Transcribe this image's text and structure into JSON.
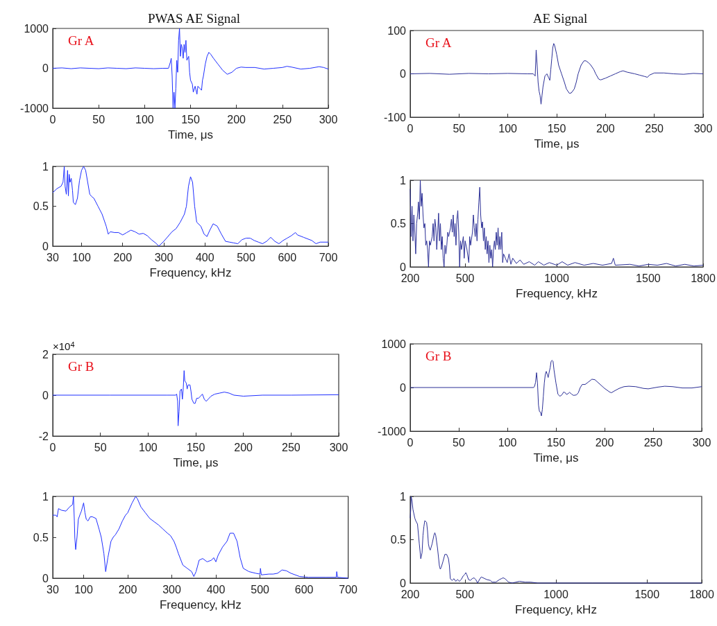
{
  "chart_data": [
    {
      "type": "line",
      "title": "PWAS AE Signal",
      "xlabel": "Time, μs",
      "annotations": [
        "Gr A"
      ],
      "xlim": [
        0,
        300
      ],
      "xticks": [
        0,
        50,
        100,
        150,
        200,
        250,
        300
      ],
      "ylim": [
        -1000,
        1000
      ],
      "yticks": [
        -1000,
        0,
        1000
      ],
      "grid": false,
      "marker": "none",
      "line_style": "solid",
      "series": [
        {
          "color": "#1f2fff",
          "x": [
            0,
            10,
            20,
            30,
            40,
            50,
            60,
            70,
            80,
            90,
            100,
            110,
            120,
            126,
            128,
            129,
            130,
            131,
            132,
            133,
            134,
            135,
            136,
            137,
            138,
            139,
            140,
            141,
            142,
            143,
            144,
            145,
            146,
            148,
            149,
            150,
            152,
            153,
            155,
            157,
            158,
            160,
            162,
            163,
            164,
            166,
            168,
            170,
            172,
            175,
            180,
            185,
            190,
            195,
            200,
            205,
            210,
            220,
            230,
            240,
            250,
            255,
            260,
            270,
            280,
            290,
            295,
            300
          ],
          "values": [
            0,
            10,
            -10,
            10,
            0,
            -10,
            10,
            0,
            -10,
            10,
            0,
            -10,
            0,
            0,
            150,
            250,
            -200,
            -1000,
            -600,
            -1000,
            -500,
            200,
            -100,
            700,
            1000,
            300,
            600,
            500,
            250,
            600,
            400,
            700,
            200,
            300,
            -100,
            -300,
            -400,
            -600,
            -450,
            -650,
            -450,
            -500,
            -550,
            -300,
            -200,
            100,
            300,
            400,
            350,
            250,
            100,
            -50,
            -150,
            -100,
            0,
            30,
            20,
            20,
            -20,
            0,
            20,
            50,
            30,
            -20,
            0,
            40,
            20,
            -20
          ]
        }
      ]
    },
    {
      "type": "line",
      "title": "AE Signal",
      "xlabel": "Time, μs",
      "annotations": [
        "Gr A"
      ],
      "xlim": [
        0,
        300
      ],
      "xticks": [
        0,
        50,
        100,
        150,
        200,
        250,
        300
      ],
      "ylim": [
        -100,
        100
      ],
      "yticks": [
        -100,
        0,
        100
      ],
      "grid": false,
      "marker": "none",
      "line_style": "solid",
      "series": [
        {
          "color": "#2b2f96",
          "x": [
            0,
            20,
            40,
            60,
            80,
            100,
            120,
            126,
            128,
            129,
            130,
            131,
            132,
            133,
            134,
            135,
            136,
            138,
            140,
            142,
            143,
            144,
            145,
            146,
            147,
            148,
            150,
            152,
            155,
            158,
            160,
            163,
            165,
            168,
            170,
            172,
            175,
            178,
            180,
            183,
            185,
            188,
            190,
            193,
            195,
            200,
            205,
            210,
            215,
            218,
            222,
            230,
            235,
            240,
            243,
            245,
            250,
            260,
            270,
            280,
            290,
            300
          ],
          "values": [
            0,
            1,
            -1,
            1,
            0,
            1,
            0,
            0,
            -5,
            55,
            20,
            -20,
            -40,
            -50,
            -70,
            -50,
            -30,
            -5,
            0,
            -10,
            -15,
            10,
            35,
            60,
            70,
            65,
            45,
            20,
            0,
            -20,
            -35,
            -45,
            -44,
            -35,
            -20,
            0,
            20,
            30,
            30,
            25,
            20,
            10,
            0,
            -12,
            -14,
            -10,
            -5,
            0,
            5,
            7,
            4,
            0,
            -3,
            -6,
            -8,
            -3,
            2,
            2,
            0,
            -1,
            1,
            0
          ]
        }
      ]
    },
    {
      "type": "line",
      "xlabel": "Frequency, kHz",
      "xlim": [
        30,
        700
      ],
      "xticks": [
        30,
        100,
        200,
        300,
        400,
        500,
        600,
        700
      ],
      "ylim": [
        0,
        1
      ],
      "yticks": [
        0,
        0.5,
        1
      ],
      "grid": false,
      "marker": "none",
      "line_style": "solid",
      "series": [
        {
          "color": "#1f2fff",
          "x": [
            30,
            40,
            50,
            55,
            58,
            60,
            63,
            66,
            68,
            70,
            72,
            75,
            78,
            80,
            85,
            90,
            95,
            100,
            105,
            110,
            115,
            120,
            125,
            130,
            140,
            150,
            160,
            165,
            170,
            180,
            190,
            200,
            210,
            220,
            230,
            240,
            250,
            260,
            270,
            280,
            288,
            300,
            320,
            330,
            340,
            350,
            355,
            360,
            365,
            370,
            375,
            380,
            390,
            398,
            405,
            412,
            420,
            430,
            440,
            450,
            460,
            470,
            480,
            490,
            500,
            510,
            520,
            530,
            540,
            550,
            560,
            570,
            580,
            590,
            600,
            610,
            620,
            625,
            640,
            660,
            670,
            680,
            700
          ],
          "values": [
            0.67,
            0.72,
            0.75,
            0.8,
            1.0,
            0.75,
            0.65,
            0.95,
            0.63,
            0.9,
            0.8,
            0.85,
            0.7,
            0.55,
            0.52,
            0.6,
            0.82,
            0.95,
            1.0,
            0.95,
            0.8,
            0.65,
            0.62,
            0.6,
            0.5,
            0.4,
            0.25,
            0.15,
            0.18,
            0.17,
            0.17,
            0.14,
            0.17,
            0.2,
            0.18,
            0.15,
            0.16,
            0.13,
            0.08,
            0.04,
            0.0,
            0.06,
            0.18,
            0.22,
            0.3,
            0.4,
            0.5,
            0.75,
            0.87,
            0.8,
            0.5,
            0.3,
            0.25,
            0.15,
            0.12,
            0.2,
            0.28,
            0.25,
            0.15,
            0.06,
            0.05,
            0.04,
            0.03,
            0.08,
            0.1,
            0.1,
            0.07,
            0.05,
            0.03,
            0.06,
            0.11,
            0.06,
            0.03,
            0.07,
            0.1,
            0.13,
            0.17,
            0.14,
            0.11,
            0.07,
            0.03,
            0.05,
            0.05
          ]
        }
      ]
    },
    {
      "type": "line",
      "xlabel": "Frequency, kHz",
      "xlim": [
        200,
        1800
      ],
      "xticks": [
        200,
        500,
        1000,
        1500,
        1800
      ],
      "ylim": [
        0,
        1
      ],
      "yticks": [
        0,
        0.5,
        1
      ],
      "grid": false,
      "marker": "none",
      "line_style": "solid",
      "series": [
        {
          "color": "#2b2f96",
          "x": [
            200,
            205,
            210,
            215,
            220,
            225,
            230,
            235,
            240,
            245,
            250,
            255,
            260,
            265,
            270,
            275,
            280,
            285,
            290,
            295,
            300,
            305,
            310,
            320,
            325,
            330,
            335,
            340,
            345,
            350,
            355,
            360,
            365,
            370,
            375,
            380,
            385,
            390,
            395,
            400,
            405,
            410,
            420,
            425,
            430,
            435,
            440,
            445,
            450,
            455,
            460,
            465,
            470,
            475,
            480,
            490,
            495,
            500,
            510,
            520,
            525,
            530,
            540,
            545,
            550,
            555,
            560,
            565,
            570,
            575,
            580,
            585,
            590,
            595,
            600,
            605,
            610,
            615,
            620,
            625,
            630,
            635,
            640,
            645,
            650,
            655,
            660,
            665,
            670,
            675,
            680,
            685,
            690,
            695,
            700,
            705,
            710,
            720,
            730,
            740,
            750,
            760,
            780,
            800,
            820,
            850,
            880,
            900,
            930,
            960,
            1000,
            1030,
            1060,
            1100,
            1150,
            1200,
            1250,
            1300,
            1310,
            1320,
            1400,
            1450,
            1500,
            1550,
            1600,
            1650,
            1700,
            1750,
            1800
          ],
          "values": [
            0.9,
            0.35,
            0.7,
            0.3,
            0.6,
            0.4,
            0.15,
            0.5,
            0.6,
            0.75,
            0.55,
            1.0,
            0.7,
            0.85,
            0.6,
            0.45,
            0.5,
            0.25,
            0.3,
            0.2,
            0.0,
            0.3,
            0.25,
            0.35,
            0.5,
            0.3,
            0.55,
            0.45,
            0.2,
            0.4,
            0.62,
            0.3,
            0.5,
            0.2,
            0.35,
            0.1,
            0.0,
            0.25,
            0.15,
            0.25,
            0.4,
            0.35,
            0.45,
            0.55,
            0.4,
            0.6,
            0.35,
            0.5,
            0.25,
            0.55,
            0.65,
            0.4,
            0.0,
            0.3,
            0.2,
            0.35,
            0.1,
            0.3,
            0.2,
            0.05,
            0.35,
            0.25,
            0.4,
            0.6,
            0.45,
            0.35,
            0.5,
            0.3,
            0.55,
            0.75,
            0.92,
            0.6,
            0.45,
            0.52,
            0.3,
            0.45,
            0.2,
            0.35,
            0.15,
            0.3,
            0.05,
            0.25,
            0.1,
            0.2,
            0.0,
            0.2,
            0.3,
            0.2,
            0.4,
            0.25,
            0.45,
            0.2,
            0.35,
            0.2,
            0.4,
            0.05,
            0.15,
            0.1,
            0.05,
            0.15,
            0.03,
            0.1,
            0.04,
            0.08,
            0.03,
            0.06,
            0.02,
            0.06,
            0.02,
            0.05,
            0.02,
            0.06,
            0.02,
            0.05,
            0.02,
            0.04,
            0.02,
            0.04,
            0.1,
            0.02,
            0.03,
            0.01,
            0.03,
            0.02,
            0.04,
            0.01,
            0.03,
            0.01,
            0.02
          ]
        }
      ]
    },
    {
      "type": "line",
      "xlabel": "Time, μs",
      "annotations": [
        "Gr B",
        "×10$^{4}$"
      ],
      "xlim": [
        0,
        300
      ],
      "xticks": [
        0,
        50,
        100,
        150,
        200,
        250,
        300
      ],
      "ylim": [
        -2,
        2
      ],
      "yticks": [
        -2,
        0,
        2
      ],
      "grid": false,
      "marker": "none",
      "line_style": "solid",
      "series": [
        {
          "color": "#1f2fff",
          "x": [
            0,
            60,
            120,
            129,
            130,
            131,
            131.5,
            132.5,
            133.5,
            135,
            136,
            137,
            137.8,
            138.5,
            140,
            141,
            142,
            144,
            145,
            146,
            148,
            149.4,
            151,
            153,
            155,
            157,
            159,
            161,
            163,
            166,
            170,
            175,
            180,
            185,
            190,
            200,
            220,
            250,
            300
          ],
          "values": [
            0,
            0,
            0,
            0,
            0.05,
            -0.3,
            -1.5,
            -0.8,
            0.2,
            0.3,
            -0.2,
            0.4,
            1.2,
            0.7,
            0.6,
            0.3,
            0.5,
            0.5,
            0.2,
            -0.2,
            -0.4,
            -0.4,
            -0.15,
            -0.15,
            -0.05,
            0.05,
            -0.2,
            -0.3,
            -0.2,
            -0.05,
            0.05,
            0.1,
            0.15,
            0.1,
            0.0,
            -0.05,
            0.0,
            0.0,
            0.02
          ]
        }
      ]
    },
    {
      "type": "line",
      "xlabel": "Time, μs",
      "annotations": [
        "Gr B"
      ],
      "xlim": [
        0,
        300
      ],
      "xticks": [
        0,
        50,
        100,
        150,
        200,
        250,
        300
      ],
      "ylim": [
        -1000,
        1000
      ],
      "yticks": [
        -1000,
        0,
        1000
      ],
      "grid": false,
      "marker": "none",
      "line_style": "solid",
      "series": [
        {
          "color": "#2b2f96",
          "x": [
            0,
            60,
            120,
            127,
            128,
            129,
            130,
            131,
            132,
            133,
            134,
            135,
            136,
            137,
            138,
            139,
            140,
            141,
            142,
            143,
            144,
            145,
            146,
            147,
            148,
            150,
            152,
            154,
            156,
            158,
            160,
            161,
            163,
            164,
            166,
            168,
            171,
            173,
            175,
            177,
            180,
            183,
            187,
            190,
            195,
            200,
            205,
            207,
            210,
            215,
            220,
            225,
            232,
            240,
            245,
            255,
            262,
            270,
            280,
            290,
            300
          ],
          "values": [
            0,
            0,
            0,
            0,
            30,
            120,
            340,
            100,
            -400,
            -550,
            -560,
            -650,
            -500,
            -200,
            100,
            300,
            370,
            300,
            230,
            350,
            450,
            600,
            620,
            600,
            400,
            100,
            -150,
            -200,
            -170,
            -100,
            -130,
            -160,
            -130,
            -110,
            -150,
            -180,
            -170,
            -120,
            0,
            70,
            70,
            120,
            190,
            180,
            80,
            -20,
            -100,
            -120,
            -80,
            -20,
            20,
            30,
            20,
            -20,
            -30,
            10,
            30,
            20,
            -10,
            -10,
            20
          ]
        }
      ]
    },
    {
      "type": "line",
      "xlabel": "Frequency, kHz",
      "xlim": [
        30,
        700
      ],
      "xticks": [
        30,
        100,
        200,
        300,
        400,
        500,
        600,
        700
      ],
      "ylim": [
        0,
        1
      ],
      "yticks": [
        0,
        0.5,
        1
      ],
      "grid": false,
      "marker": "none",
      "line_style": "solid",
      "series": [
        {
          "color": "#1f2fff",
          "x": [
            30,
            37,
            40,
            43,
            50,
            60,
            68,
            75,
            77,
            79,
            80,
            82,
            85,
            88,
            92,
            95,
            100,
            103,
            106,
            110,
            115,
            120,
            128,
            135,
            140,
            146,
            150,
            155,
            162,
            167,
            172,
            180,
            188,
            195,
            200,
            210,
            218,
            222,
            230,
            240,
            250,
            260,
            270,
            280,
            290,
            297,
            305,
            310,
            315,
            325,
            335,
            345,
            350,
            355,
            362,
            370,
            380,
            390,
            395,
            400,
            405,
            415,
            425,
            432,
            440,
            448,
            455,
            462,
            475,
            490,
            500,
            501,
            503,
            520,
            530,
            540,
            550,
            560,
            570,
            590,
            610,
            650,
            673,
            674,
            676,
            700
          ],
          "values": [
            0.77,
            0.77,
            0.75,
            0.85,
            0.83,
            0.82,
            0.87,
            0.9,
            1.0,
            0.7,
            0.5,
            0.35,
            0.5,
            0.72,
            0.78,
            0.82,
            0.92,
            0.8,
            0.72,
            0.7,
            0.75,
            0.75,
            0.73,
            0.6,
            0.5,
            0.3,
            0.08,
            0.25,
            0.45,
            0.5,
            0.53,
            0.6,
            0.7,
            0.77,
            0.8,
            0.92,
            1.0,
            0.97,
            0.87,
            0.8,
            0.73,
            0.69,
            0.65,
            0.6,
            0.55,
            0.52,
            0.45,
            0.38,
            0.3,
            0.16,
            0.12,
            0.08,
            0.02,
            0.08,
            0.22,
            0.24,
            0.2,
            0.22,
            0.25,
            0.2,
            0.28,
            0.38,
            0.45,
            0.55,
            0.55,
            0.45,
            0.25,
            0.12,
            0.08,
            0.06,
            0.05,
            0.12,
            0.04,
            0.05,
            0.05,
            0.06,
            0.1,
            0.09,
            0.06,
            0.02,
            0.01,
            0.01,
            0.01,
            0.08,
            0.01,
            0.0
          ]
        }
      ]
    },
    {
      "type": "line",
      "xlabel": "Frequency, kHz",
      "xlim": [
        200,
        1800
      ],
      "xticks": [
        200,
        500,
        1000,
        1500,
        1800
      ],
      "ylim": [
        0,
        1
      ],
      "yticks": [
        0,
        0.5,
        1
      ],
      "grid": false,
      "marker": "none",
      "line_style": "solid",
      "series": [
        {
          "color": "#2b2f96",
          "x": [
            200,
            203,
            205,
            210,
            215,
            220,
            225,
            230,
            240,
            250,
            258,
            265,
            270,
            275,
            280,
            290,
            295,
            300,
            305,
            310,
            320,
            330,
            335,
            340,
            350,
            360,
            365,
            370,
            380,
            390,
            400,
            410,
            415,
            420,
            430,
            440,
            450,
            460,
            470,
            480,
            490,
            500,
            505,
            510,
            520,
            530,
            540,
            550,
            560,
            570,
            580,
            590,
            600,
            620,
            640,
            650,
            670,
            690,
            700,
            710,
            720,
            730,
            740,
            760,
            780,
            800,
            830,
            860,
            900,
            1000,
            1200,
            1500,
            1800
          ],
          "values": [
            0.75,
            0.85,
            1.0,
            0.95,
            0.85,
            0.8,
            0.75,
            0.72,
            0.68,
            0.45,
            0.28,
            0.35,
            0.55,
            0.65,
            0.72,
            0.7,
            0.6,
            0.45,
            0.4,
            0.38,
            0.45,
            0.55,
            0.58,
            0.55,
            0.4,
            0.2,
            0.16,
            0.18,
            0.25,
            0.33,
            0.33,
            0.28,
            0.2,
            0.05,
            0.03,
            0.05,
            0.02,
            0.04,
            0.02,
            0.04,
            0.08,
            0.1,
            0.12,
            0.1,
            0.04,
            0.03,
            0.05,
            0.06,
            0.04,
            0.0,
            0.04,
            0.07,
            0.06,
            0.04,
            0.03,
            0.01,
            0.01,
            0.04,
            0.05,
            0.06,
            0.05,
            0.03,
            0.01,
            0.0,
            0.01,
            0.02,
            0.01,
            0.01,
            0.0,
            0.0,
            0.0,
            0.0,
            0.0
          ]
        }
      ]
    }
  ]
}
